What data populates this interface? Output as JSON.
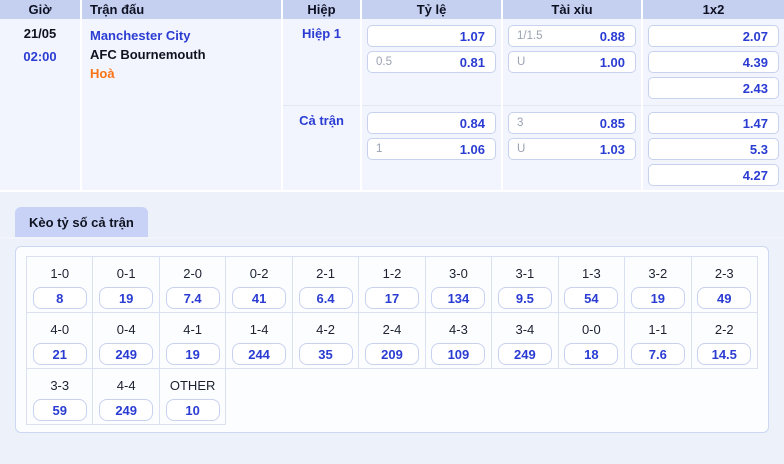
{
  "colors": {
    "accent_blue": "#2b3cd3",
    "accent_orange": "#f97316",
    "header_bg": "#c5d0f1",
    "tab_bg": "#c8d2f7",
    "row_bg": "#f2f5fd"
  },
  "table": {
    "headers": {
      "time": "Giờ",
      "match": "Trận đấu",
      "half": "Hiệp",
      "handicap": "Tỷ lệ",
      "over_under": "Tài xỉu",
      "one_x_two": "1x2"
    },
    "row": {
      "date": "21/05",
      "time": "02:00",
      "home_team": "Manchester City",
      "away_team": "AFC Bournemouth",
      "draw_label": "Hoà",
      "periods": [
        {
          "label": "Hiệp 1",
          "handicap": [
            {
              "line": "",
              "odds": "1.07"
            },
            {
              "line": "0.5",
              "odds": "0.81"
            }
          ],
          "over_under": [
            {
              "line": "1/1.5",
              "odds": "0.88"
            },
            {
              "line": "U",
              "odds": "1.00"
            }
          ],
          "one_x_two": [
            "2.07",
            "4.39",
            "2.43"
          ]
        },
        {
          "label": "Cả trận",
          "handicap": [
            {
              "line": "",
              "odds": "0.84"
            },
            {
              "line": "1",
              "odds": "1.06"
            }
          ],
          "over_under": [
            {
              "line": "3",
              "odds": "0.85"
            },
            {
              "line": "U",
              "odds": "1.03"
            }
          ],
          "one_x_two": [
            "1.47",
            "5.3",
            "4.27"
          ]
        }
      ]
    }
  },
  "score_section": {
    "tab_label": "Kèo tỷ số cả trận",
    "columns": 11,
    "rows": [
      [
        {
          "score": "1-0",
          "odds": "8"
        },
        {
          "score": "0-1",
          "odds": "19"
        },
        {
          "score": "2-0",
          "odds": "7.4"
        },
        {
          "score": "0-2",
          "odds": "41"
        },
        {
          "score": "2-1",
          "odds": "6.4"
        },
        {
          "score": "1-2",
          "odds": "17"
        },
        {
          "score": "3-0",
          "odds": "134"
        },
        {
          "score": "3-1",
          "odds": "9.5"
        },
        {
          "score": "1-3",
          "odds": "54"
        },
        {
          "score": "3-2",
          "odds": "19"
        },
        {
          "score": "2-3",
          "odds": "49"
        }
      ],
      [
        {
          "score": "4-0",
          "odds": "21"
        },
        {
          "score": "0-4",
          "odds": "249"
        },
        {
          "score": "4-1",
          "odds": "19"
        },
        {
          "score": "1-4",
          "odds": "244"
        },
        {
          "score": "4-2",
          "odds": "35"
        },
        {
          "score": "2-4",
          "odds": "209"
        },
        {
          "score": "4-3",
          "odds": "109"
        },
        {
          "score": "3-4",
          "odds": "249"
        },
        {
          "score": "0-0",
          "odds": "18"
        },
        {
          "score": "1-1",
          "odds": "7.6"
        },
        {
          "score": "2-2",
          "odds": "14.5"
        }
      ],
      [
        {
          "score": "3-3",
          "odds": "59"
        },
        {
          "score": "4-4",
          "odds": "249"
        },
        {
          "score": "OTHER",
          "odds": "10"
        }
      ]
    ]
  }
}
